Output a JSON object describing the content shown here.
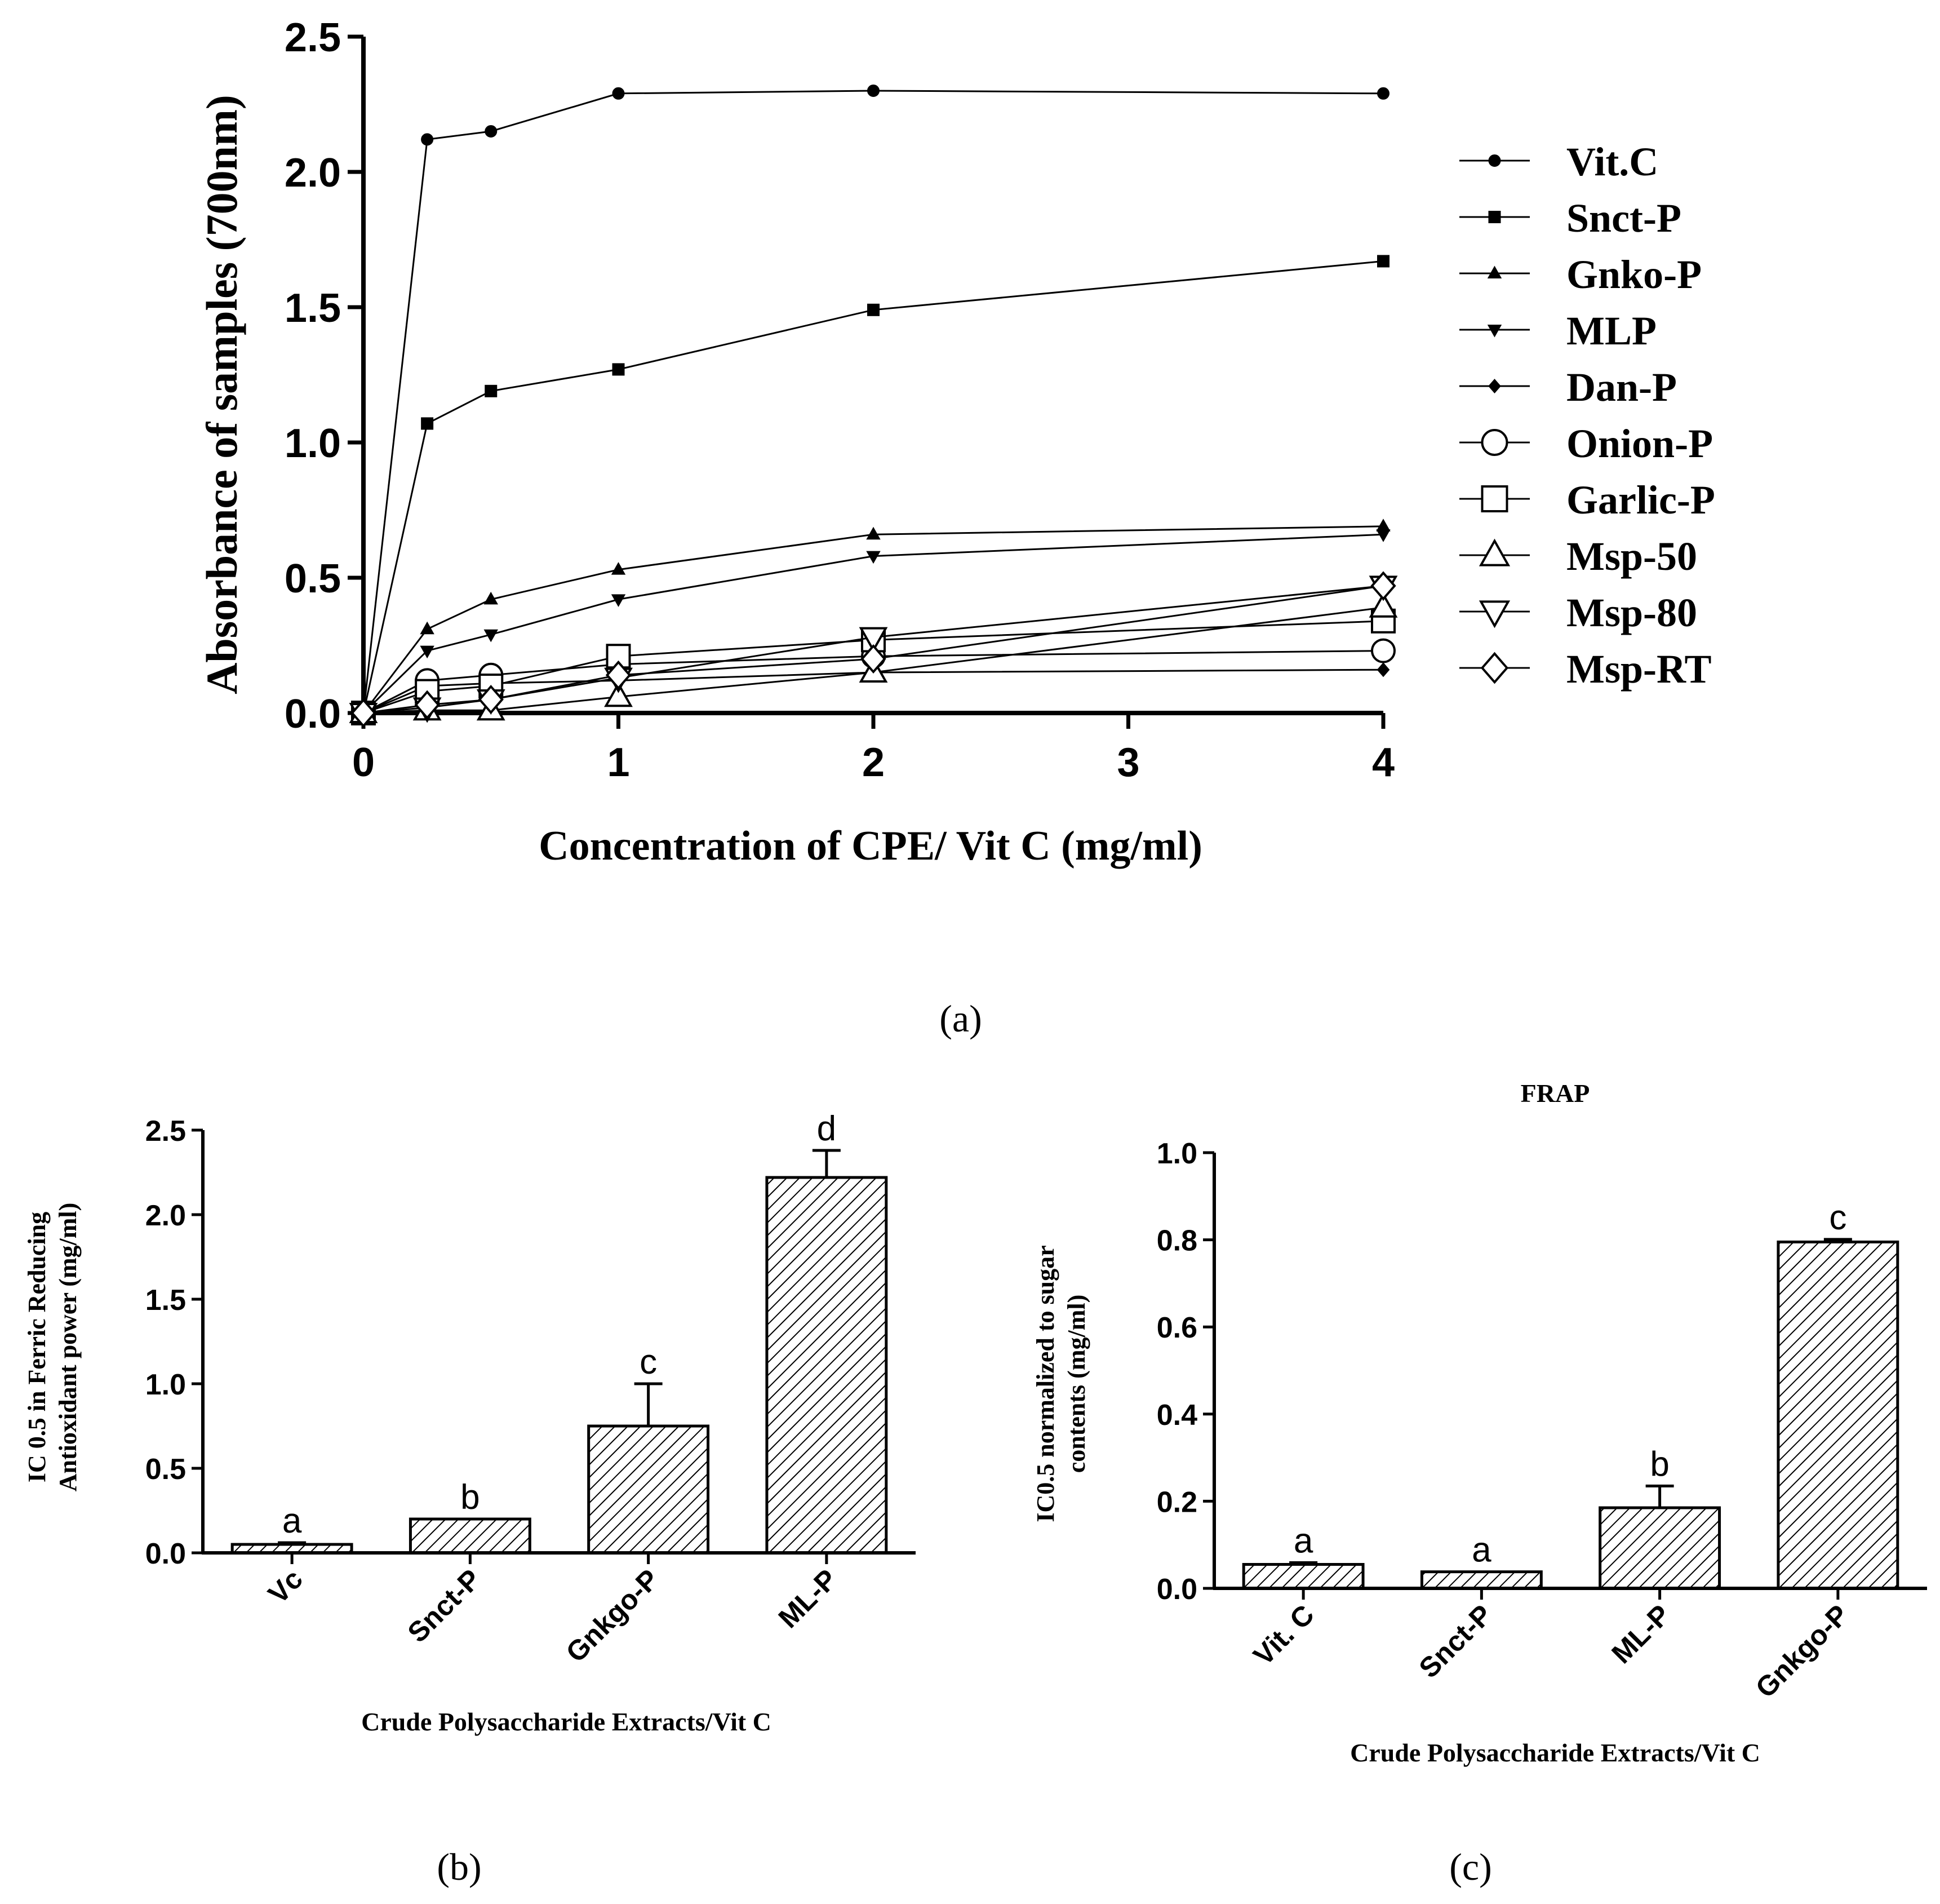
{
  "chart_data": [
    {
      "panel": "(a)",
      "type": "line",
      "title": "",
      "xlabel": "Concentration of CPE/ Vit C (mg/ml)",
      "ylabel": "Absorbance of samples (700nm)",
      "xlim": [
        0,
        4
      ],
      "ylim": [
        0,
        2.5
      ],
      "xticks": [
        "0",
        "1",
        "2",
        "3",
        "4"
      ],
      "yticks": [
        "0.0",
        "0.5",
        "1.0",
        "1.5",
        "2.0",
        "2.5"
      ],
      "x": [
        0,
        0.25,
        0.5,
        1,
        2,
        4
      ],
      "legend_position": "right",
      "series": [
        {
          "name": "Vit.C",
          "marker": "circle-filled",
          "values": [
            0,
            2.12,
            2.15,
            2.29,
            2.3,
            2.29
          ]
        },
        {
          "name": "Snct-P",
          "marker": "square-filled",
          "values": [
            0,
            1.07,
            1.19,
            1.27,
            1.49,
            1.67
          ]
        },
        {
          "name": "Gnko-P",
          "marker": "triangle-up-filled",
          "values": [
            0,
            0.31,
            0.42,
            0.53,
            0.66,
            0.69
          ]
        },
        {
          "name": "MLP",
          "marker": "triangle-down-filled",
          "values": [
            0,
            0.23,
            0.29,
            0.42,
            0.58,
            0.66
          ]
        },
        {
          "name": "Dan-P",
          "marker": "diamond-filled",
          "values": [
            0,
            0.1,
            0.11,
            0.12,
            0.15,
            0.16
          ]
        },
        {
          "name": "Onion-P",
          "marker": "circle-open",
          "values": [
            0,
            0.12,
            0.14,
            0.18,
            0.21,
            0.23
          ]
        },
        {
          "name": "Garlic-P",
          "marker": "square-open",
          "values": [
            0,
            0.08,
            0.1,
            0.21,
            0.27,
            0.34
          ]
        },
        {
          "name": "Msp-50",
          "marker": "triangle-up-open",
          "values": [
            0,
            0.01,
            0.01,
            0.06,
            0.15,
            0.39
          ]
        },
        {
          "name": "Msp-80",
          "marker": "triangle-down-open",
          "values": [
            0,
            0.02,
            0.05,
            0.13,
            0.28,
            0.47
          ]
        },
        {
          "name": "Msp-RT",
          "marker": "diamond-open",
          "values": [
            0,
            0.03,
            0.05,
            0.14,
            0.2,
            0.47
          ]
        }
      ]
    },
    {
      "panel": "(b)",
      "type": "bar",
      "title": "",
      "xlabel": "Crude Polysaccharide Extracts/Vit C",
      "ylabel_lines": [
        "IC 0.5 in Ferric Reducing",
        "Antioxidant  power (mg/ml)"
      ],
      "ylim": [
        0,
        2.5
      ],
      "yticks": [
        "0.0",
        "0.5",
        "1.0",
        "1.5",
        "2.0",
        "2.5"
      ],
      "categories": [
        "Vc",
        "Snct-P",
        "Gnkgo-P",
        "ML-P"
      ],
      "values": [
        0.05,
        0.2,
        0.75,
        2.22
      ],
      "errors": [
        0.01,
        0.0,
        0.25,
        0.16
      ],
      "labels": [
        "a",
        "b",
        "c",
        "d"
      ]
    },
    {
      "panel": "(c)",
      "type": "bar",
      "title": "FRAP",
      "xlabel": "Crude Polysaccharide Extracts/Vit C",
      "ylabel_lines": [
        "IC0.5 normalized to sugar",
        "contents (mg/ml)"
      ],
      "ylim": [
        0,
        1.0
      ],
      "yticks": [
        "0.0",
        "0.2",
        "0.4",
        "0.6",
        "0.8",
        "1.0"
      ],
      "categories": [
        "Vit. C",
        "Snct-P",
        "ML-P",
        "Gnkgo-P"
      ],
      "values": [
        0.055,
        0.038,
        0.185,
        0.795
      ],
      "errors": [
        0.004,
        0.0,
        0.05,
        0.006
      ],
      "labels": [
        "a",
        "a",
        "b",
        "c"
      ]
    }
  ],
  "panel_labels": [
    "(a)",
    "(b)",
    "(c)"
  ]
}
